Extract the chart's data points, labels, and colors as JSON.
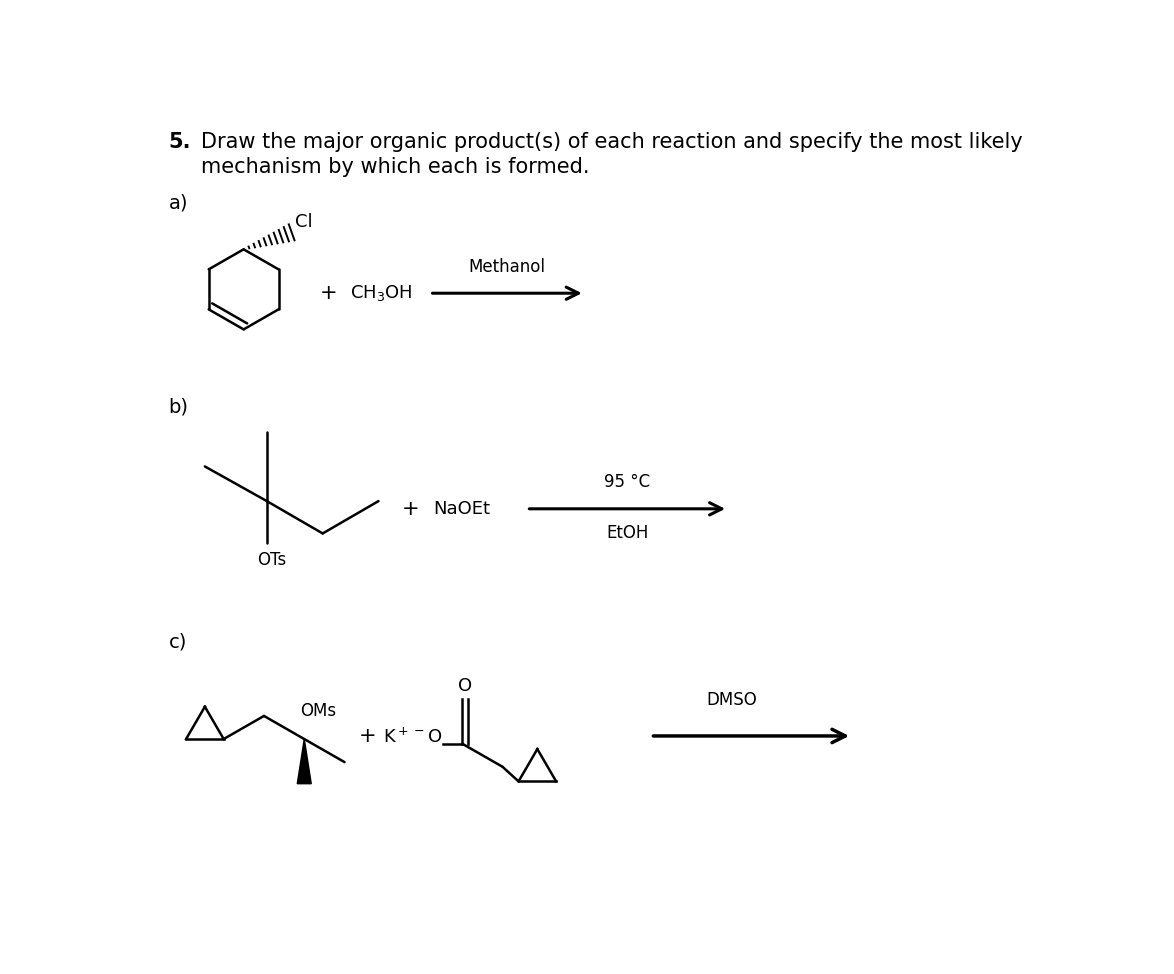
{
  "bg_color": "#ffffff",
  "text_color": "#000000",
  "title_bold": "5.",
  "title_line1": "Draw the major organic product(s) of each reaction and specify the most likely",
  "title_line2": "mechanism by which each is formed.",
  "label_a": "a)",
  "label_b": "b)",
  "label_c": "c)",
  "font_title": 15,
  "font_label": 14,
  "font_chem": 13,
  "lw": 1.8
}
